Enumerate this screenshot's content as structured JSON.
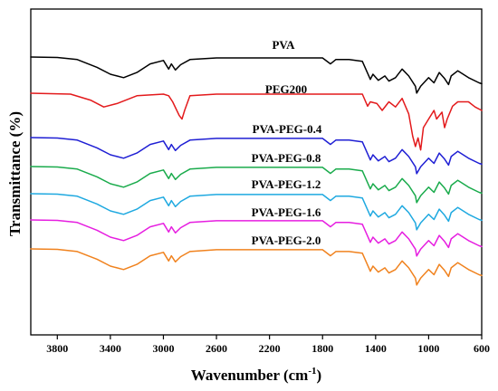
{
  "chart_data": {
    "type": "line",
    "title": "",
    "xlabel": "Wavenumber (cm",
    "xlabel_sup": "-1",
    "xlabel_close": ")",
    "ylabel": "Transmittance (%)",
    "xlim": [
      4000,
      600
    ],
    "x_reversed": true,
    "x_ticks": [
      3800,
      3400,
      3000,
      2600,
      2200,
      1800,
      1400,
      1000,
      600
    ],
    "y_ticks_shown": false,
    "grid": false,
    "legend": "none",
    "series_labels_inline": true,
    "series": [
      {
        "name": "PVA",
        "color": "#000000",
        "points": [
          [
            4000,
            0
          ],
          [
            3800,
            -0.5
          ],
          [
            3650,
            -3
          ],
          [
            3500,
            -12
          ],
          [
            3400,
            -20
          ],
          [
            3300,
            -24
          ],
          [
            3200,
            -18
          ],
          [
            3100,
            -8
          ],
          [
            3000,
            -4
          ],
          [
            2960,
            -14
          ],
          [
            2940,
            -8
          ],
          [
            2910,
            -15
          ],
          [
            2870,
            -9
          ],
          [
            2800,
            -3
          ],
          [
            2600,
            -1
          ],
          [
            2200,
            -1
          ],
          [
            1800,
            -1
          ],
          [
            1740,
            -8
          ],
          [
            1700,
            -3
          ],
          [
            1600,
            -3
          ],
          [
            1500,
            -5
          ],
          [
            1440,
            -26
          ],
          [
            1420,
            -20
          ],
          [
            1380,
            -27
          ],
          [
            1330,
            -22
          ],
          [
            1300,
            -28
          ],
          [
            1250,
            -24
          ],
          [
            1200,
            -14
          ],
          [
            1150,
            -22
          ],
          [
            1100,
            -34
          ],
          [
            1090,
            -42
          ],
          [
            1060,
            -34
          ],
          [
            1000,
            -24
          ],
          [
            960,
            -30
          ],
          [
            920,
            -18
          ],
          [
            880,
            -25
          ],
          [
            850,
            -32
          ],
          [
            830,
            -22
          ],
          [
            780,
            -16
          ],
          [
            700,
            -24
          ],
          [
            620,
            -30
          ],
          [
            600,
            -31
          ]
        ]
      },
      {
        "name": "PEG200",
        "color": "#e31a1c",
        "points": [
          [
            4000,
            0
          ],
          [
            3700,
            -1
          ],
          [
            3550,
            -8
          ],
          [
            3450,
            -16
          ],
          [
            3350,
            -12
          ],
          [
            3200,
            -3
          ],
          [
            3000,
            -1
          ],
          [
            2960,
            -3
          ],
          [
            2930,
            -10
          ],
          [
            2880,
            -26
          ],
          [
            2860,
            -30
          ],
          [
            2840,
            -20
          ],
          [
            2800,
            -3
          ],
          [
            2600,
            -1
          ],
          [
            2200,
            -1
          ],
          [
            1800,
            -1
          ],
          [
            1600,
            -1
          ],
          [
            1500,
            -1
          ],
          [
            1460,
            -15
          ],
          [
            1440,
            -10
          ],
          [
            1390,
            -12
          ],
          [
            1350,
            -20
          ],
          [
            1300,
            -10
          ],
          [
            1250,
            -16
          ],
          [
            1200,
            -6
          ],
          [
            1150,
            -24
          ],
          [
            1120,
            -50
          ],
          [
            1100,
            -62
          ],
          [
            1080,
            -52
          ],
          [
            1060,
            -66
          ],
          [
            1040,
            -40
          ],
          [
            1000,
            -30
          ],
          [
            960,
            -20
          ],
          [
            940,
            -30
          ],
          [
            900,
            -22
          ],
          [
            880,
            -40
          ],
          [
            860,
            -30
          ],
          [
            820,
            -15
          ],
          [
            780,
            -10
          ],
          [
            700,
            -10
          ],
          [
            650,
            -16
          ],
          [
            600,
            -20
          ]
        ]
      },
      {
        "name": "PVA-PEG-0.4",
        "color": "#1f1fd4",
        "points": [
          [
            4000,
            0
          ],
          [
            3800,
            -0.5
          ],
          [
            3650,
            -3
          ],
          [
            3500,
            -12
          ],
          [
            3400,
            -20
          ],
          [
            3300,
            -24
          ],
          [
            3200,
            -18
          ],
          [
            3100,
            -8
          ],
          [
            3000,
            -4
          ],
          [
            2960,
            -14
          ],
          [
            2940,
            -8
          ],
          [
            2910,
            -15
          ],
          [
            2870,
            -9
          ],
          [
            2800,
            -3
          ],
          [
            2600,
            -1
          ],
          [
            2200,
            -1
          ],
          [
            1800,
            -1
          ],
          [
            1740,
            -8
          ],
          [
            1700,
            -3
          ],
          [
            1600,
            -3
          ],
          [
            1500,
            -5
          ],
          [
            1440,
            -26
          ],
          [
            1420,
            -20
          ],
          [
            1380,
            -27
          ],
          [
            1330,
            -22
          ],
          [
            1300,
            -28
          ],
          [
            1250,
            -24
          ],
          [
            1200,
            -14
          ],
          [
            1150,
            -22
          ],
          [
            1100,
            -34
          ],
          [
            1090,
            -42
          ],
          [
            1060,
            -34
          ],
          [
            1000,
            -24
          ],
          [
            960,
            -30
          ],
          [
            920,
            -18
          ],
          [
            880,
            -25
          ],
          [
            850,
            -32
          ],
          [
            830,
            -22
          ],
          [
            780,
            -16
          ],
          [
            700,
            -24
          ],
          [
            620,
            -30
          ],
          [
            600,
            -31
          ]
        ]
      },
      {
        "name": "PVA-PEG-0.8",
        "color": "#1aab4c",
        "points": [
          [
            4000,
            0
          ],
          [
            3800,
            -0.5
          ],
          [
            3650,
            -3
          ],
          [
            3500,
            -12
          ],
          [
            3400,
            -20
          ],
          [
            3300,
            -24
          ],
          [
            3200,
            -18
          ],
          [
            3100,
            -8
          ],
          [
            3000,
            -4
          ],
          [
            2960,
            -14
          ],
          [
            2940,
            -8
          ],
          [
            2910,
            -15
          ],
          [
            2870,
            -9
          ],
          [
            2800,
            -3
          ],
          [
            2600,
            -1
          ],
          [
            2200,
            -1
          ],
          [
            1800,
            -1
          ],
          [
            1740,
            -8
          ],
          [
            1700,
            -3
          ],
          [
            1600,
            -3
          ],
          [
            1500,
            -5
          ],
          [
            1440,
            -26
          ],
          [
            1420,
            -20
          ],
          [
            1380,
            -27
          ],
          [
            1330,
            -22
          ],
          [
            1300,
            -28
          ],
          [
            1250,
            -24
          ],
          [
            1200,
            -14
          ],
          [
            1150,
            -22
          ],
          [
            1100,
            -34
          ],
          [
            1090,
            -42
          ],
          [
            1060,
            -34
          ],
          [
            1000,
            -24
          ],
          [
            960,
            -30
          ],
          [
            920,
            -18
          ],
          [
            880,
            -25
          ],
          [
            850,
            -32
          ],
          [
            830,
            -22
          ],
          [
            780,
            -16
          ],
          [
            700,
            -24
          ],
          [
            620,
            -30
          ],
          [
            600,
            -31
          ]
        ]
      },
      {
        "name": "PVA-PEG-1.2",
        "color": "#1fa9e0",
        "points": [
          [
            4000,
            0
          ],
          [
            3800,
            -0.5
          ],
          [
            3650,
            -3
          ],
          [
            3500,
            -12
          ],
          [
            3400,
            -20
          ],
          [
            3300,
            -24
          ],
          [
            3200,
            -18
          ],
          [
            3100,
            -8
          ],
          [
            3000,
            -4
          ],
          [
            2960,
            -14
          ],
          [
            2940,
            -8
          ],
          [
            2910,
            -15
          ],
          [
            2870,
            -9
          ],
          [
            2800,
            -3
          ],
          [
            2600,
            -1
          ],
          [
            2200,
            -1
          ],
          [
            1800,
            -1
          ],
          [
            1740,
            -8
          ],
          [
            1700,
            -3
          ],
          [
            1600,
            -3
          ],
          [
            1500,
            -5
          ],
          [
            1440,
            -26
          ],
          [
            1420,
            -20
          ],
          [
            1380,
            -27
          ],
          [
            1330,
            -22
          ],
          [
            1300,
            -28
          ],
          [
            1250,
            -24
          ],
          [
            1200,
            -14
          ],
          [
            1150,
            -22
          ],
          [
            1100,
            -34
          ],
          [
            1090,
            -42
          ],
          [
            1060,
            -34
          ],
          [
            1000,
            -24
          ],
          [
            960,
            -30
          ],
          [
            920,
            -18
          ],
          [
            880,
            -25
          ],
          [
            850,
            -32
          ],
          [
            830,
            -22
          ],
          [
            780,
            -16
          ],
          [
            700,
            -24
          ],
          [
            620,
            -30
          ],
          [
            600,
            -31
          ]
        ]
      },
      {
        "name": "PVA-PEG-1.6",
        "color": "#e61ee0",
        "points": [
          [
            4000,
            0
          ],
          [
            3800,
            -0.5
          ],
          [
            3650,
            -3
          ],
          [
            3500,
            -12
          ],
          [
            3400,
            -20
          ],
          [
            3300,
            -24
          ],
          [
            3200,
            -18
          ],
          [
            3100,
            -8
          ],
          [
            3000,
            -4
          ],
          [
            2960,
            -14
          ],
          [
            2940,
            -8
          ],
          [
            2910,
            -15
          ],
          [
            2870,
            -9
          ],
          [
            2800,
            -3
          ],
          [
            2600,
            -1
          ],
          [
            2200,
            -1
          ],
          [
            1800,
            -1
          ],
          [
            1740,
            -8
          ],
          [
            1700,
            -3
          ],
          [
            1600,
            -3
          ],
          [
            1500,
            -5
          ],
          [
            1440,
            -26
          ],
          [
            1420,
            -20
          ],
          [
            1380,
            -27
          ],
          [
            1330,
            -22
          ],
          [
            1300,
            -28
          ],
          [
            1250,
            -24
          ],
          [
            1200,
            -14
          ],
          [
            1150,
            -22
          ],
          [
            1100,
            -34
          ],
          [
            1090,
            -42
          ],
          [
            1060,
            -34
          ],
          [
            1000,
            -24
          ],
          [
            960,
            -30
          ],
          [
            920,
            -18
          ],
          [
            880,
            -25
          ],
          [
            850,
            -32
          ],
          [
            830,
            -22
          ],
          [
            780,
            -16
          ],
          [
            700,
            -24
          ],
          [
            620,
            -30
          ],
          [
            600,
            -31
          ]
        ]
      },
      {
        "name": "PVA-PEG-2.0",
        "color": "#f0821e",
        "points": [
          [
            4000,
            0
          ],
          [
            3800,
            -0.5
          ],
          [
            3650,
            -3
          ],
          [
            3500,
            -12
          ],
          [
            3400,
            -20
          ],
          [
            3300,
            -24
          ],
          [
            3200,
            -18
          ],
          [
            3100,
            -8
          ],
          [
            3000,
            -4
          ],
          [
            2960,
            -14
          ],
          [
            2940,
            -8
          ],
          [
            2910,
            -15
          ],
          [
            2870,
            -9
          ],
          [
            2800,
            -3
          ],
          [
            2600,
            -1
          ],
          [
            2200,
            -1
          ],
          [
            1800,
            -1
          ],
          [
            1740,
            -8
          ],
          [
            1700,
            -3
          ],
          [
            1600,
            -3
          ],
          [
            1500,
            -5
          ],
          [
            1440,
            -26
          ],
          [
            1420,
            -20
          ],
          [
            1380,
            -27
          ],
          [
            1330,
            -22
          ],
          [
            1300,
            -28
          ],
          [
            1250,
            -24
          ],
          [
            1200,
            -14
          ],
          [
            1150,
            -22
          ],
          [
            1100,
            -34
          ],
          [
            1090,
            -42
          ],
          [
            1060,
            -34
          ],
          [
            1000,
            -24
          ],
          [
            960,
            -30
          ],
          [
            920,
            -18
          ],
          [
            880,
            -25
          ],
          [
            850,
            -32
          ],
          [
            830,
            -22
          ],
          [
            780,
            -16
          ],
          [
            700,
            -24
          ],
          [
            620,
            -30
          ],
          [
            600,
            -31
          ]
        ]
      }
    ]
  }
}
